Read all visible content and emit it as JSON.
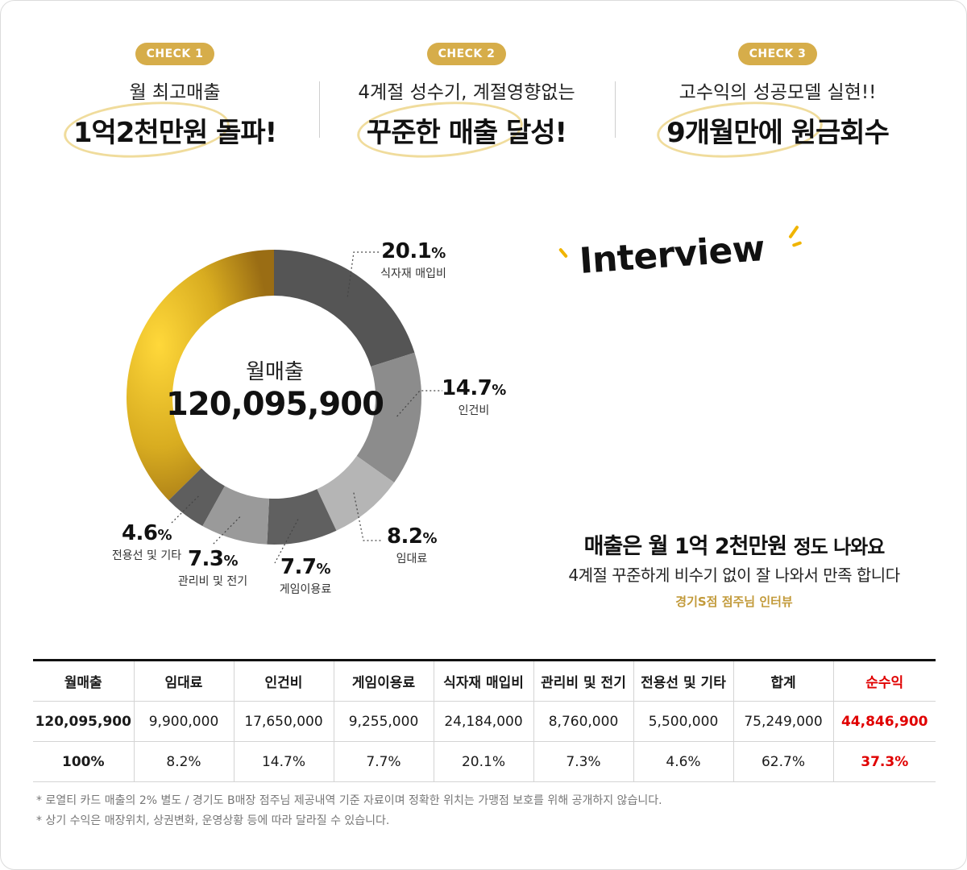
{
  "checks": [
    {
      "badge": "CHECK 1",
      "line1": "월 최고매출",
      "line2": "1억2천만원 돌파!"
    },
    {
      "badge": "CHECK 2",
      "line1": "4계절 성수기, 계절영향없는",
      "line2": "꾸준한 매출 달성!"
    },
    {
      "badge": "CHECK 3",
      "line1": "고수익의 성공모델 실현!!",
      "line2": "9개월만에 원금회수"
    }
  ],
  "donut": {
    "center_label": "월매출",
    "center_value": "120,095,900",
    "labels": {
      "food": {
        "pct": "20.1",
        "name": "식자재 매입비"
      },
      "labor": {
        "pct": "14.7",
        "name": "인건비"
      },
      "rent": {
        "pct": "8.2",
        "name": "임대료"
      },
      "game": {
        "pct": "7.7",
        "name": "게임이용료"
      },
      "admin": {
        "pct": "7.3",
        "name": "관리비 및 전기"
      },
      "line": {
        "pct": "4.6",
        "name": "전용선 및 기타"
      }
    }
  },
  "chart_data": {
    "type": "pie",
    "title": "월매출",
    "categories": [
      "순수익",
      "식자재 매입비",
      "인건비",
      "임대료",
      "게임이용료",
      "관리비 및 전기",
      "전용선 및 기타"
    ],
    "values": [
      37.3,
      20.1,
      14.7,
      8.2,
      7.7,
      7.3,
      4.6
    ],
    "colors": [
      "#c9a227",
      "#555555",
      "#8c8c8c",
      "#b5b5b5",
      "#606060",
      "#9a9a9a",
      "#5e5e5e"
    ],
    "center_value": "120,095,900"
  },
  "interview": {
    "title": "Interview",
    "quote_strong": "매출은 월 1억 2천만원",
    "quote_rest": "정도 나와요",
    "sub": "4계절 꾸준하게 비수기 없이 잘 나와서 만족 합니다",
    "source": "경기S점 점주님 인터뷰"
  },
  "table": {
    "headers": [
      "월매출",
      "임대료",
      "인건비",
      "게임이용료",
      "식자재 매입비",
      "관리비 및 전기",
      "전용선 및 기타",
      "합계",
      "순수익"
    ],
    "values": [
      "120,095,900",
      "9,900,000",
      "17,650,000",
      "9,255,000",
      "24,184,000",
      "8,760,000",
      "5,500,000",
      "75,249,000",
      "44,846,900"
    ],
    "percents": [
      "100%",
      "8.2%",
      "14.7%",
      "7.7%",
      "20.1%",
      "7.3%",
      "4.6%",
      "62.7%",
      "37.3%"
    ]
  },
  "notes": [
    "* 로열티 카드 매출의 2% 별도 / 경기도 B매장 점주님 제공내역 기준 자료이며 정확한 위치는 가맹점 보호를 위해 공개하지 않습니다.",
    "* 상기 수익은 매장위치, 상권변화, 운영상황 등에 따라 달라질 수 있습니다."
  ],
  "colors": {
    "gold": "#d6ad4a",
    "profit_red": "#e00000",
    "source_gold": "#c29a3a"
  }
}
